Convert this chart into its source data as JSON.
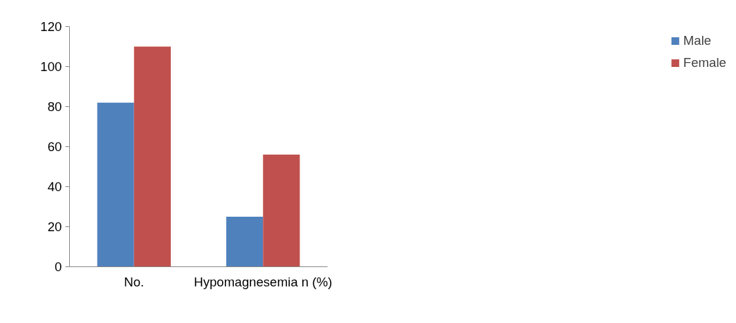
{
  "chart_data": {
    "type": "bar",
    "categories": [
      "No.",
      "Hypomagnesemia n (%)"
    ],
    "series": [
      {
        "name": "Male",
        "color": "#4f81bd",
        "values": [
          82,
          25
        ]
      },
      {
        "name": "Female",
        "color": "#c0504d",
        "values": [
          110,
          56
        ]
      }
    ],
    "ylim": [
      0,
      120
    ],
    "yticks": [
      0,
      20,
      40,
      60,
      80,
      100,
      120
    ],
    "grid": false,
    "legend": "right"
  }
}
